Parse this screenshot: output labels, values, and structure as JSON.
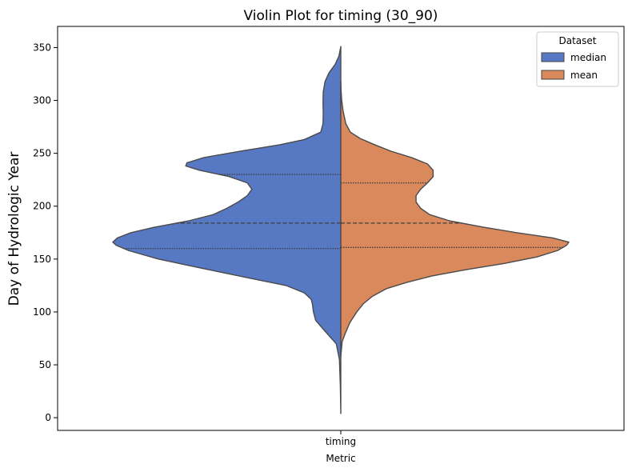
{
  "chart_data": {
    "type": "violin",
    "title": "Violin Plot for timing (30_90)",
    "xlabel": "Metric",
    "ylabel": "Day of Hydrologic Year",
    "categories": [
      "timing"
    ],
    "ylim": [
      -12,
      370
    ],
    "yticks": [
      0,
      50,
      100,
      150,
      200,
      250,
      300,
      350
    ],
    "legend": {
      "title": "Dataset",
      "placement": "top-right"
    },
    "series": [
      {
        "name": "median",
        "side": "left",
        "color": "#5778c3",
        "range": [
          4,
          351
        ],
        "quartiles": [
          160,
          184,
          230
        ],
        "density": [
          [
            4,
            0.0
          ],
          [
            30,
            0.002
          ],
          [
            55,
            0.006
          ],
          [
            70,
            0.02
          ],
          [
            82,
            0.07
          ],
          [
            92,
            0.11
          ],
          [
            100,
            0.12
          ],
          [
            108,
            0.125
          ],
          [
            112,
            0.13
          ],
          [
            118,
            0.16
          ],
          [
            125,
            0.24
          ],
          [
            132,
            0.4
          ],
          [
            140,
            0.58
          ],
          [
            150,
            0.8
          ],
          [
            158,
            0.93
          ],
          [
            163,
            0.985
          ],
          [
            166,
            1.0
          ],
          [
            170,
            0.98
          ],
          [
            175,
            0.92
          ],
          [
            180,
            0.82
          ],
          [
            186,
            0.67
          ],
          [
            192,
            0.56
          ],
          [
            198,
            0.5
          ],
          [
            204,
            0.45
          ],
          [
            210,
            0.41
          ],
          [
            216,
            0.39
          ],
          [
            222,
            0.41
          ],
          [
            228,
            0.49
          ],
          [
            234,
            0.62
          ],
          [
            238,
            0.68
          ],
          [
            241,
            0.675
          ],
          [
            246,
            0.6
          ],
          [
            252,
            0.44
          ],
          [
            258,
            0.27
          ],
          [
            263,
            0.16
          ],
          [
            270,
            0.088
          ],
          [
            278,
            0.078
          ],
          [
            288,
            0.077
          ],
          [
            298,
            0.078
          ],
          [
            308,
            0.077
          ],
          [
            318,
            0.069
          ],
          [
            326,
            0.052
          ],
          [
            334,
            0.025
          ],
          [
            342,
            0.008
          ],
          [
            351,
            0.0
          ]
        ]
      },
      {
        "name": "mean",
        "side": "right",
        "color": "#d9895b",
        "range": [
          58,
          318
        ],
        "quartiles": [
          161,
          184,
          222
        ],
        "density": [
          [
            58,
            0.0
          ],
          [
            65,
            0.003
          ],
          [
            72,
            0.006
          ],
          [
            80,
            0.02
          ],
          [
            90,
            0.04
          ],
          [
            100,
            0.07
          ],
          [
            108,
            0.1
          ],
          [
            115,
            0.14
          ],
          [
            122,
            0.2
          ],
          [
            128,
            0.29
          ],
          [
            134,
            0.4
          ],
          [
            140,
            0.55
          ],
          [
            146,
            0.72
          ],
          [
            152,
            0.86
          ],
          [
            158,
            0.95
          ],
          [
            163,
            0.99
          ],
          [
            166,
            1.0
          ],
          [
            170,
            0.93
          ],
          [
            175,
            0.77
          ],
          [
            180,
            0.63
          ],
          [
            186,
            0.48
          ],
          [
            192,
            0.39
          ],
          [
            198,
            0.35
          ],
          [
            204,
            0.33
          ],
          [
            210,
            0.33
          ],
          [
            216,
            0.35
          ],
          [
            222,
            0.38
          ],
          [
            228,
            0.405
          ],
          [
            234,
            0.405
          ],
          [
            240,
            0.38
          ],
          [
            246,
            0.31
          ],
          [
            252,
            0.22
          ],
          [
            258,
            0.15
          ],
          [
            264,
            0.085
          ],
          [
            270,
            0.042
          ],
          [
            278,
            0.022
          ],
          [
            290,
            0.01
          ],
          [
            300,
            0.004
          ],
          [
            310,
            0.001
          ],
          [
            318,
            0.0
          ]
        ]
      }
    ]
  }
}
